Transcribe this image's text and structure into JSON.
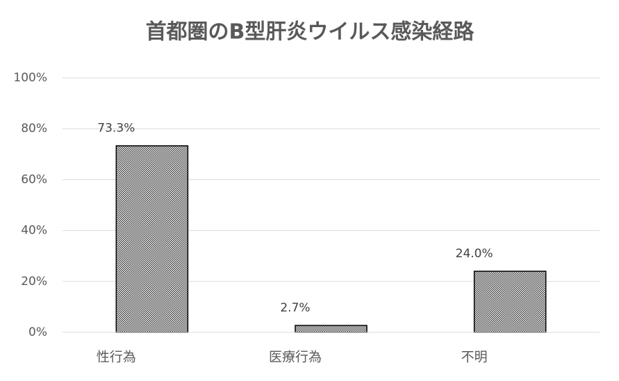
{
  "chart_data": {
    "type": "bar",
    "title": "首都圏のB型肝炎ウイルス感染経路",
    "categories": [
      "性行為",
      "医療行為",
      "不明"
    ],
    "values": [
      73.3,
      2.7,
      24.0
    ],
    "value_labels": [
      "73.3%",
      "2.7%",
      "24.0%"
    ],
    "color": "#3a3a3a",
    "ylim": [
      0,
      100
    ],
    "yticks": [
      {
        "value": 0,
        "label": "0%"
      },
      {
        "value": 20,
        "label": "20%"
      },
      {
        "value": 40,
        "label": "40%"
      },
      {
        "value": 60,
        "label": "60%"
      },
      {
        "value": 80,
        "label": "80%"
      },
      {
        "value": 100,
        "label": "100%"
      }
    ],
    "grid": true
  }
}
